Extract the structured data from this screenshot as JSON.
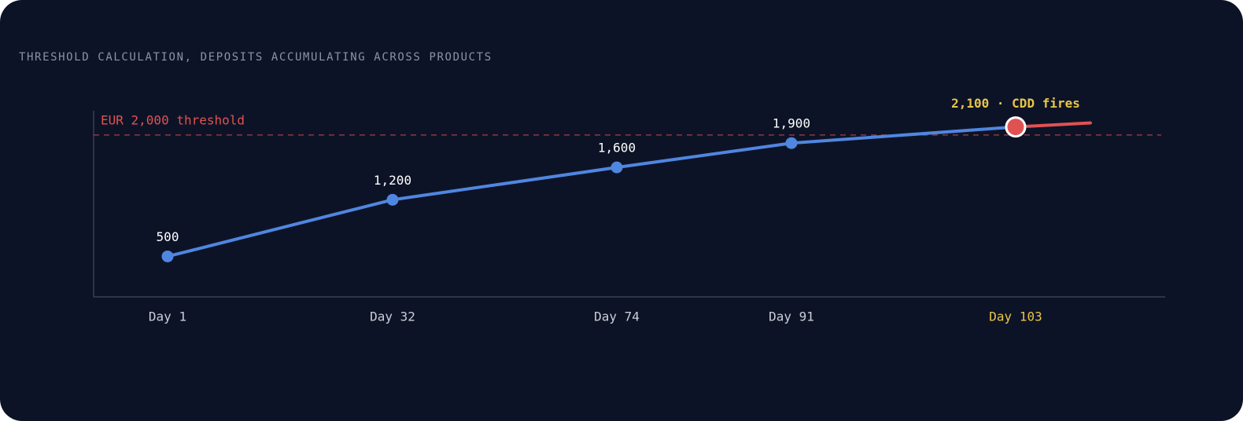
{
  "chart_data": {
    "type": "line",
    "title": "THRESHOLD CALCULATION, DEPOSITS ACCUMULATING ACROSS PRODUCTS",
    "categories": [
      "Day 1",
      "Day 32",
      "Day 74",
      "Day 91",
      "Day 103"
    ],
    "values": [
      500,
      1200,
      1600,
      1900,
      2100
    ],
    "value_labels": [
      "500",
      "1,200",
      "1,600",
      "1,900",
      "2,100 · CDD fires"
    ],
    "color": "#4f86e0",
    "highlight_index": 4,
    "highlight_color": "#e8c547",
    "alert_color": "#e05252",
    "ylim": [
      0,
      2300
    ],
    "threshold": {
      "value": 2000,
      "label": "EUR 2,000 threshold",
      "color": "#e05252"
    }
  }
}
